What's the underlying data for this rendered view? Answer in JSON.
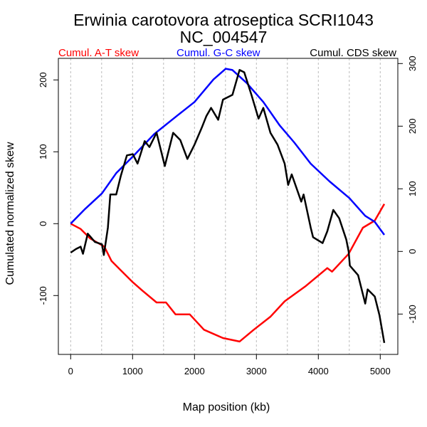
{
  "chart_data": {
    "type": "line",
    "title": "Erwinia carotovora atroseptica SCRI1043",
    "subtitle": "NC_004547",
    "xlabel": "Map position (kb)",
    "ylabel": "Cumulated normalized skew",
    "xlim": [
      0,
      5100
    ],
    "ylim": [
      -184,
      230
    ],
    "y2lim": [
      -165,
      305
    ],
    "x_ticks": [
      0,
      1000,
      2000,
      3000,
      4000,
      5000
    ],
    "x_tick_labels": [
      "0",
      "1000",
      "2000",
      "3000",
      "4000",
      "5000"
    ],
    "y_ticks": [
      -100,
      0,
      100,
      200
    ],
    "y_tick_labels": [
      "-100",
      "0",
      "100",
      "200"
    ],
    "y2_ticks": [
      -100,
      0,
      100,
      200,
      300
    ],
    "y2_tick_labels": [
      "-100",
      "0",
      "100",
      "200",
      "300"
    ],
    "grid_x": [
      0,
      500,
      1000,
      1500,
      2000,
      2500,
      3000,
      3500,
      4000,
      4500,
      5000
    ],
    "legend": [
      "Cumul. A-T skew",
      "Cumul. G-C skew",
      "Cumul. CDS skew"
    ],
    "series": [
      {
        "name": "Cumul. A-T skew",
        "color": "#ff0000",
        "axis": "left",
        "x": [
          0,
          161,
          314,
          544,
          659,
          812,
          1004,
          1157,
          1387,
          1540,
          1693,
          1923,
          2153,
          2460,
          2728,
          2958,
          3226,
          3456,
          3800,
          4145,
          4222,
          4490,
          4720,
          4911,
          5065
        ],
        "y": [
          0,
          -7.3,
          -20.5,
          -32,
          -51.8,
          -65,
          -81.5,
          -93.1,
          -109.6,
          -109.6,
          -126.1,
          -126.1,
          -147.5,
          -159.1,
          -164,
          -147.5,
          -129.4,
          -108,
          -86.5,
          -61.8,
          -66.7,
          -42,
          -5.6,
          4.3,
          27.4
        ]
      },
      {
        "name": "Cumul. G-C skew",
        "color": "#0000ff",
        "axis": "left",
        "x": [
          0,
          237,
          506,
          736,
          1004,
          1349,
          1732,
          2000,
          2306,
          2505,
          2613,
          2843,
          3111,
          3379,
          3609,
          3877,
          4183,
          4501,
          4758,
          4911,
          5065
        ],
        "y": [
          0,
          20.8,
          42.2,
          70.3,
          93.4,
          124.7,
          151.1,
          169.3,
          200.6,
          215.5,
          213.8,
          195.7,
          169.3,
          136.3,
          113.2,
          83.5,
          58.7,
          35.6,
          10.9,
          2.6,
          -15.5
        ]
      },
      {
        "name": "Cumul. CDS skew",
        "color": "#000000",
        "axis": "right",
        "x": [
          0,
          84,
          161,
          199,
          276,
          391,
          506,
          536,
          601,
          640,
          736,
          812,
          908,
          1004,
          1080,
          1195,
          1272,
          1387,
          1521,
          1655,
          1770,
          1885,
          2000,
          2115,
          2191,
          2268,
          2383,
          2460,
          2613,
          2728,
          2804,
          2919,
          3034,
          3111,
          3226,
          3341,
          3456,
          3513,
          3570,
          3724,
          3762,
          3877,
          3915,
          4069,
          4145,
          4241,
          4337,
          4452,
          4490,
          4509,
          4643,
          4758,
          4796,
          4911,
          4988,
          5065
        ],
        "y": [
          -1.9,
          3.8,
          7.6,
          -3.8,
          28.4,
          15.2,
          11.4,
          -5.7,
          37.9,
          90.9,
          90.9,
          121.2,
          153.4,
          155.3,
          140.2,
          176.1,
          166.7,
          189.4,
          136.4,
          189.4,
          178,
          147.7,
          170.5,
          197,
          215.9,
          229.2,
          210.2,
          242.4,
          250,
          289.8,
          286,
          250,
          212.1,
          229.2,
          189.4,
          170.5,
          140.2,
          106.1,
          123.1,
          79.5,
          90.9,
          37.9,
          22.7,
          13.3,
          32.2,
          66.3,
          53,
          18.9,
          0,
          -22.7,
          -37.9,
          -83.3,
          -60.6,
          -71.9,
          -102.3,
          -146
        ]
      }
    ]
  }
}
